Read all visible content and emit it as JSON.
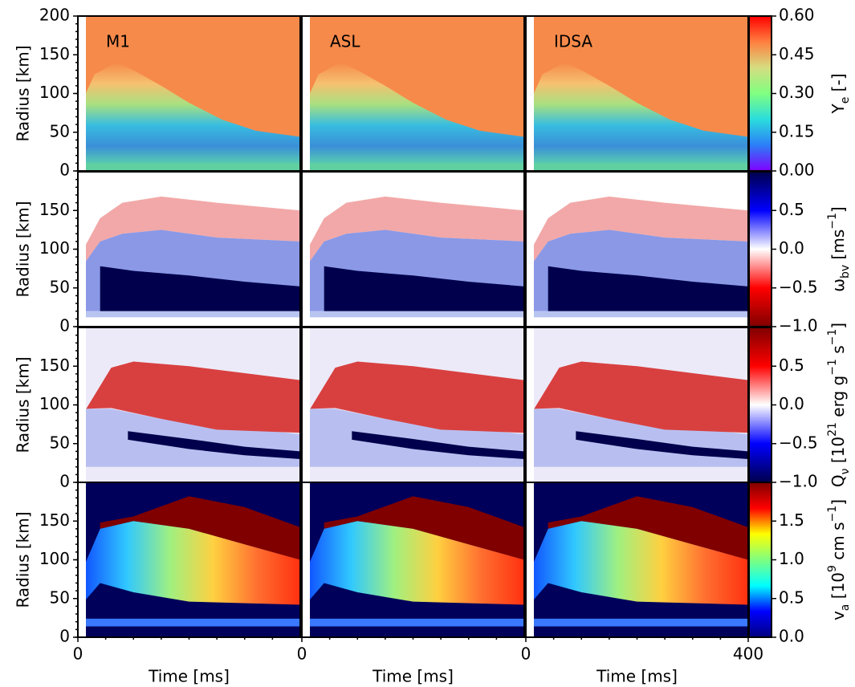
{
  "columns": [
    {
      "label": "M1",
      "xlabel": "Time [ms]",
      "xlim": [
        0,
        400
      ],
      "xticks": [
        0
      ]
    },
    {
      "label": "ASL",
      "xlabel": "Time [ms]",
      "xlim": [
        0,
        400
      ],
      "xticks": [
        0
      ]
    },
    {
      "label": "IDSA",
      "xlabel": "Time [ms]",
      "xlim": [
        0,
        400
      ],
      "xticks": [
        0,
        400
      ]
    }
  ],
  "rows": [
    {
      "ylabel": "Radius [km]",
      "ylim": [
        0,
        200
      ],
      "yticks": [
        0,
        50,
        100,
        150,
        200
      ],
      "colorbar": {
        "clim": [
          0,
          0.6
        ],
        "cticks": [
          {
            "value": 0,
            "label": "0.00"
          },
          {
            "value": 0.15,
            "label": "0.15"
          },
          {
            "value": 0.3,
            "label": "0.30"
          },
          {
            "value": 0.45,
            "label": "0.45"
          },
          {
            "value": 0.6,
            "label": "0.60"
          }
        ],
        "label": [
          "Y",
          {
            "sub": "e"
          },
          " [-]"
        ],
        "colormap": [
          "#8000ff",
          "#2c7ef7",
          "#2adddd",
          "#80ff80",
          "#d4dd80",
          "#ff7f40",
          "#ff0000"
        ]
      }
    },
    {
      "ylabel": "Radius [km]",
      "ylim": [
        0,
        200
      ],
      "yticks": [
        0,
        50,
        100,
        150
      ],
      "colorbar": {
        "clim": [
          -1,
          1
        ],
        "cticks": [
          {
            "value": -1,
            "label": "−1.0"
          },
          {
            "value": -0.5,
            "label": "−0.5"
          },
          {
            "value": 0,
            "label": "0.0"
          },
          {
            "value": 0.5,
            "label": "0.5"
          }
        ],
        "label": [
          "ω",
          {
            "sub": "bv"
          },
          " [ms",
          {
            "sup": "−1"
          },
          "]"
        ],
        "colormap": [
          "#7f0000",
          "#ff0000",
          "#ffffff",
          "#0000ff",
          "#00004c"
        ]
      }
    },
    {
      "ylabel": "Radius [km]",
      "ylim": [
        0,
        200
      ],
      "yticks": [
        0,
        50,
        100,
        150
      ],
      "colorbar": {
        "clim": [
          -1,
          1
        ],
        "cticks": [
          {
            "value": -1,
            "label": "−1.0"
          },
          {
            "value": -0.5,
            "label": "−0.5"
          },
          {
            "value": 0,
            "label": "0.0"
          },
          {
            "value": 0.5,
            "label": "0.5"
          }
        ],
        "label": [
          "Q",
          {
            "sub": "ν"
          },
          " [10",
          {
            "sup": "21"
          },
          " erg g",
          {
            "sup": "−1"
          },
          " s",
          {
            "sup": "−1"
          },
          "]"
        ],
        "colormap": [
          "#00004c",
          "#0000ff",
          "#ffffff",
          "#ff0000",
          "#7f0000"
        ]
      }
    },
    {
      "ylabel": "Radius [km]",
      "ylim": [
        0,
        200
      ],
      "yticks": [
        0,
        50,
        100,
        150
      ],
      "colorbar": {
        "clim": [
          0,
          2
        ],
        "cticks": [
          {
            "value": 0,
            "label": "0.0"
          },
          {
            "value": 0.5,
            "label": "0.5"
          },
          {
            "value": 1,
            "label": "1.0"
          },
          {
            "value": 1.5,
            "label": "1.5"
          }
        ],
        "label": [
          "v",
          {
            "sub": "a"
          },
          " [10",
          {
            "sup": "9"
          },
          " cm s",
          {
            "sup": "−1"
          },
          "]"
        ],
        "colormap": [
          "#00007f",
          "#0000ff",
          "#00ffff",
          "#7fff7f",
          "#ffff00",
          "#ff0000",
          "#7f0000"
        ]
      }
    }
  ]
}
